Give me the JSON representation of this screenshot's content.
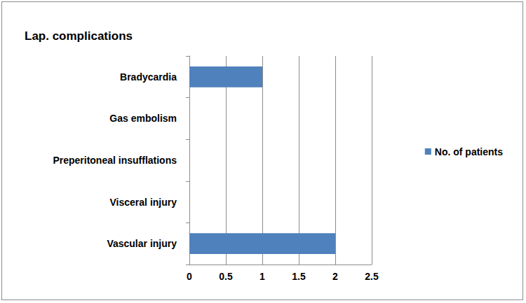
{
  "chart_data": {
    "type": "bar",
    "title": "Lap. complications",
    "orientation": "horizontal",
    "categories": [
      "Vascular injury",
      "Visceral injury",
      "Preperitoneal insufflations",
      "Gas embolism",
      "Bradycardia"
    ],
    "series": [
      {
        "name": "No. of patients",
        "color": "#4f81bd",
        "values": [
          2,
          0,
          0,
          0,
          1
        ]
      }
    ],
    "xlim": [
      0,
      2.5
    ],
    "xticks": [
      0,
      0.5,
      1,
      1.5,
      2,
      2.5
    ],
    "grid": true,
    "legend": "right"
  }
}
